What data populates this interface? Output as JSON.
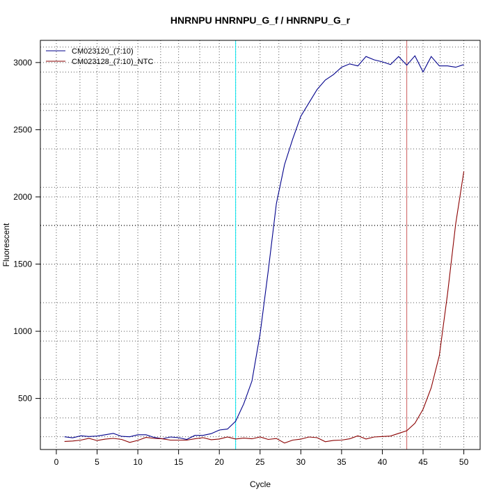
{
  "chart_data": {
    "type": "line",
    "title": "HNRNPU  HNRNPU_G_f / HNRNPU_G_r",
    "xlabel": "Cycle",
    "ylabel": "Fluorescent",
    "xlim": [
      -1.96,
      52.0
    ],
    "ylim": [
      120,
      3165
    ],
    "x_ticks": [
      0,
      5,
      10,
      15,
      20,
      25,
      30,
      35,
      40,
      45,
      50
    ],
    "y_ticks": [
      500,
      1000,
      1500,
      2000,
      2500,
      3000
    ],
    "grid": true,
    "legend_position": "top-left",
    "x": [
      1,
      2,
      3,
      4,
      5,
      6,
      7,
      8,
      9,
      10,
      11,
      12,
      13,
      14,
      15,
      16,
      17,
      18,
      19,
      20,
      21,
      22,
      23,
      24,
      25,
      26,
      27,
      28,
      29,
      30,
      31,
      32,
      33,
      34,
      35,
      36,
      37,
      38,
      39,
      40,
      41,
      42,
      43,
      44,
      45,
      46,
      47,
      48,
      49,
      50
    ],
    "series": [
      {
        "name": "CM023120_(7:10)",
        "color": "#00008b",
        "values": [
          215,
          207,
          222,
          217,
          220,
          230,
          240,
          218,
          215,
          230,
          230,
          210,
          200,
          213,
          208,
          195,
          225,
          225,
          238,
          265,
          272,
          330,
          460,
          630,
          980,
          1450,
          1950,
          2240,
          2430,
          2600,
          2700,
          2800,
          2870,
          2910,
          2965,
          2990,
          2975,
          3045,
          3020,
          3005,
          2985,
          3045,
          2980,
          3050,
          2930,
          3045,
          2975,
          2975,
          2965,
          2985
        ]
      },
      {
        "name": "CM023128_(7:10)_NTC",
        "color": "#8b0000",
        "values": [
          180,
          183,
          190,
          203,
          187,
          197,
          203,
          195,
          173,
          188,
          210,
          203,
          200,
          190,
          190,
          190,
          200,
          208,
          193,
          198,
          213,
          198,
          205,
          200,
          213,
          195,
          202,
          168,
          190,
          197,
          213,
          208,
          178,
          188,
          190,
          200,
          222,
          198,
          213,
          217,
          220,
          240,
          260,
          315,
          420,
          580,
          820,
          1280,
          1800,
          2190
        ]
      }
    ],
    "vertical_lines": [
      {
        "x": 22.0,
        "color": "#00e5ee"
      },
      {
        "x": 43.0,
        "color": "#cd5c5c"
      }
    ]
  }
}
